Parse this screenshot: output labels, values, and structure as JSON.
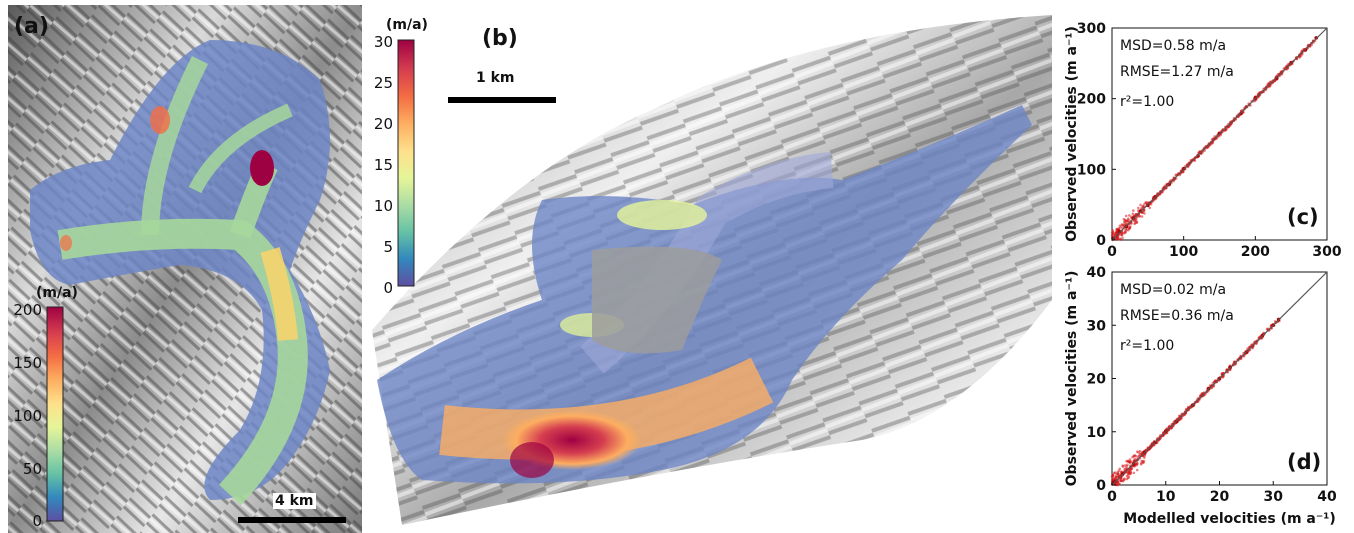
{
  "panel_a": {
    "label": "(a)",
    "colorbar": {
      "unit": "(m/a)",
      "ticks": [
        "200",
        "150",
        "100",
        "50",
        "0"
      ]
    },
    "scale_bar": "4 km"
  },
  "panel_b": {
    "label": "(b)",
    "colorbar": {
      "unit": "(m/a)",
      "ticks": [
        "30",
        "25",
        "20",
        "15",
        "10",
        "5",
        "0"
      ]
    },
    "scale_bar": "1 km"
  },
  "colors": {
    "colormap": [
      "#5e4fa2",
      "#3288bd",
      "#66c2a5",
      "#abdda4",
      "#e6f598",
      "#fee08b",
      "#fdae61",
      "#f46d43",
      "#d53e4f",
      "#9e0142"
    ],
    "scatter": "#d7191c",
    "fit_line": "#555555"
  },
  "chart_data": [
    {
      "panel_label": "(c)",
      "type": "scatter",
      "xlabel": "",
      "ylabel": "Observed velocities (m a-1)",
      "xlim": [
        0,
        300
      ],
      "ylim": [
        0,
        300
      ],
      "xticks": [
        0,
        100,
        200,
        300
      ],
      "yticks": [
        0,
        100,
        200,
        300
      ],
      "stats": {
        "msd": "MSD=0.58 m/a",
        "rmse": "RMSE=1.27 m/a",
        "r2": "r²=1.00"
      },
      "points_summary": {
        "x": [
          2,
          10,
          20,
          30,
          40,
          50,
          60,
          80,
          100,
          120,
          150,
          180,
          200,
          230,
          250,
          270,
          285
        ],
        "y": [
          2,
          12,
          19,
          31,
          41,
          49,
          61,
          79,
          101,
          119,
          151,
          179,
          201,
          229,
          251,
          269,
          286
        ]
      },
      "reference_line": [
        [
          0,
          0
        ],
        [
          300,
          300
        ]
      ]
    },
    {
      "panel_label": "(d)",
      "type": "scatter",
      "xlabel": "Modelled velocities (m a-1)",
      "ylabel": "Observed velocities (m a-1)",
      "xlim": [
        0,
        40
      ],
      "ylim": [
        0,
        40
      ],
      "xticks": [
        0,
        10,
        20,
        30,
        40
      ],
      "yticks": [
        0,
        10,
        20,
        30,
        40
      ],
      "stats": {
        "msd": "MSD=0.02 m/a",
        "rmse": "RMSE=0.36 m/a",
        "r2": "r²=1.00"
      },
      "points_summary": {
        "x": [
          0.5,
          2,
          4,
          6,
          8,
          10,
          12,
          15,
          18,
          20,
          22,
          25,
          28,
          30,
          31
        ],
        "y": [
          0.6,
          2.1,
          3.9,
          6.1,
          8.0,
          10.1,
          11.9,
          15.0,
          18.1,
          20.0,
          22.1,
          24.9,
          28.1,
          30.0,
          31.1
        ]
      },
      "reference_line": [
        [
          0,
          0
        ],
        [
          40,
          40
        ]
      ]
    }
  ]
}
